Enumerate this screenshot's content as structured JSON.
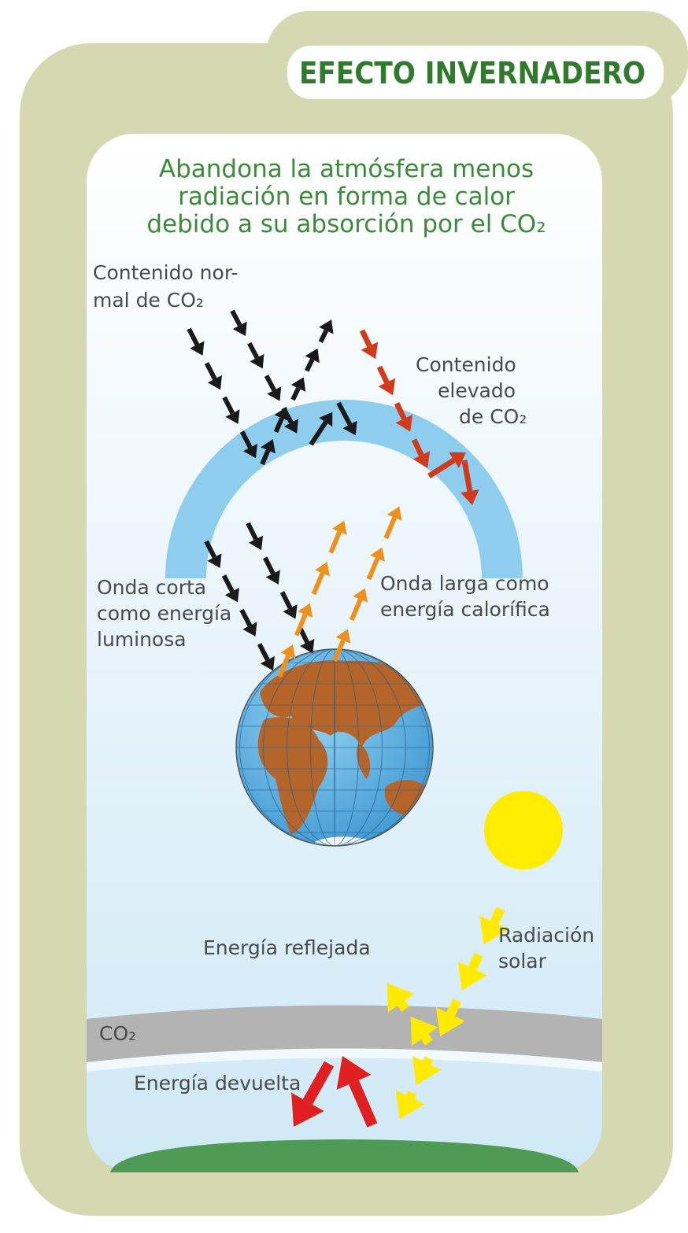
{
  "header": {
    "title": "EFECTO INVERNADERO"
  },
  "subtitle": [
    "Abandona la atmósfera menos",
    "radiación en forma de calor",
    "debido a su absorción por el CO₂"
  ],
  "labels": {
    "normal_co2": [
      "Contenido nor-",
      "mal de CO₂"
    ],
    "high_co2": [
      "Contenido",
      "elevado",
      "de CO₂"
    ],
    "short_wave": [
      "Onda corta",
      "como energía",
      "luminosa"
    ],
    "long_wave": [
      "Onda larga como",
      "energía calorífica"
    ],
    "solar": [
      "Radiación",
      "solar"
    ],
    "reflected": "Energía reflejada",
    "co2_layer": "CO₂",
    "returned": "Energía devuelta"
  }
}
